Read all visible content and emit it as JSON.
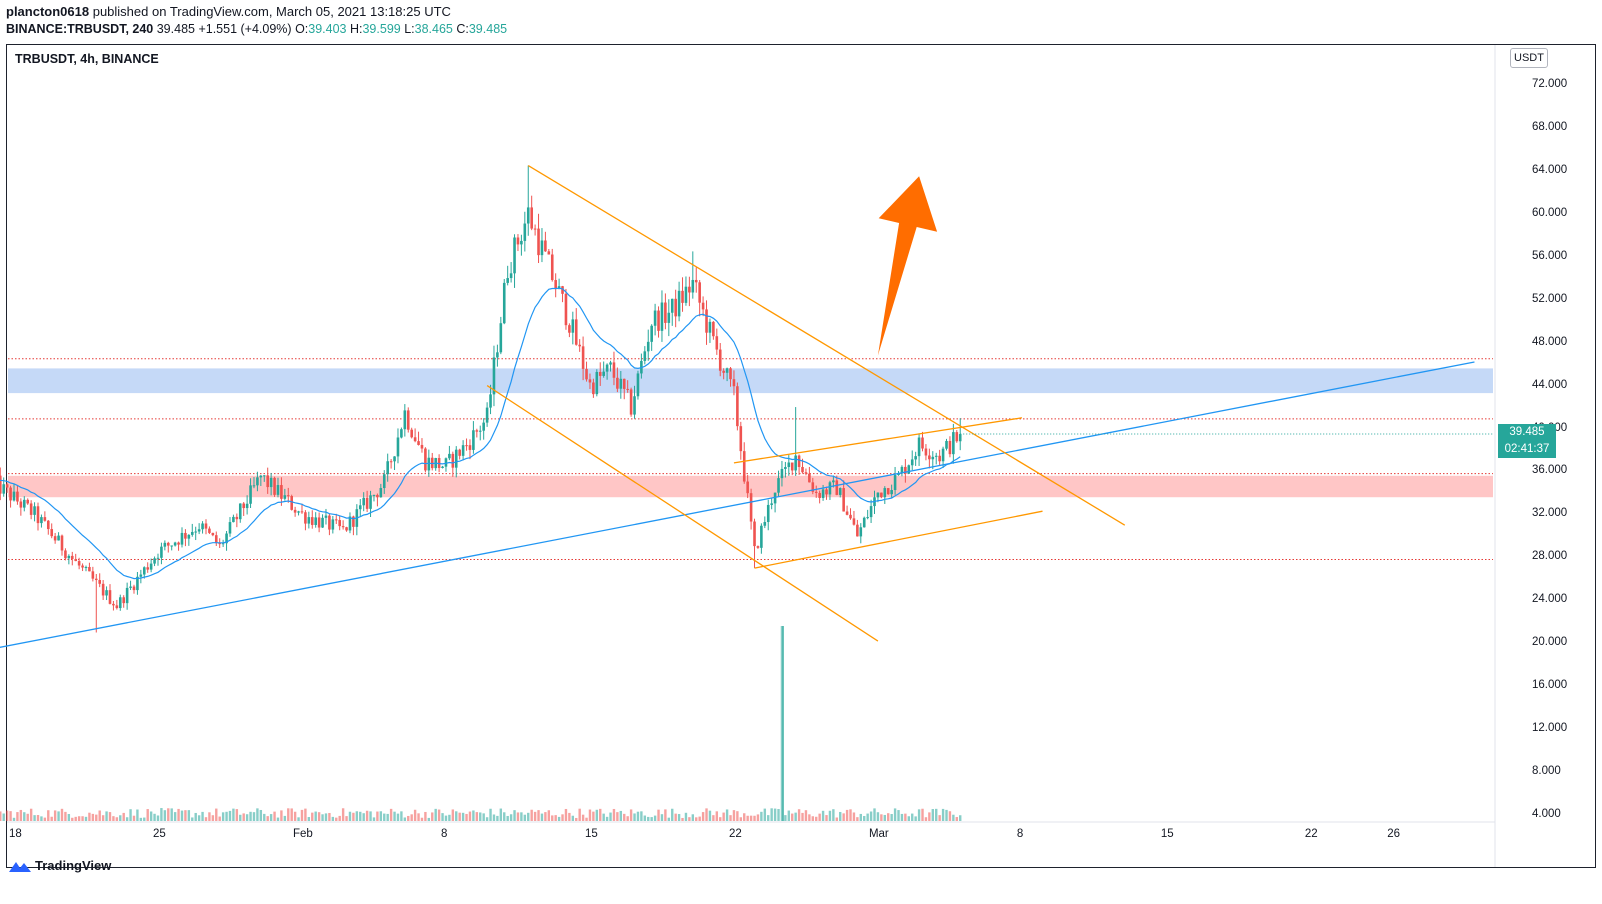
{
  "header": {
    "publisher": "plancton0618",
    "published_text": "published on TradingView.com, March 05, 2021 13:18:25 UTC",
    "symbol_full": "BINANCE:TRBUSDT, 240",
    "last": "39.485",
    "change": "+1.551 (+4.09%)",
    "o_label": "O:",
    "o_value": "39.403",
    "h_label": "H:",
    "h_value": "39.599",
    "l_label": "L:",
    "l_value": "38.465",
    "c_label": "C:",
    "c_value": "39.485"
  },
  "legend": {
    "text": "TRBUSDT, 4h, BINANCE"
  },
  "currency_badge": "USDT",
  "price_tag": {
    "price": "39.485",
    "countdown": "02:41:37"
  },
  "branding": "TradingView",
  "colors": {
    "up": "#26a69a",
    "down": "#ef5350",
    "ema": "#2196f3",
    "trend": "#ff9800",
    "arrow": "#ff6d00",
    "res_zone": "#c5d9f7",
    "sup_zone": "#ffc6c6",
    "dotted": "#e53935"
  },
  "chart_data": {
    "type": "candlestick",
    "title": "TRBUSDT, 4h, BINANCE",
    "x_ticks": [
      "18",
      "25",
      "Feb",
      "8",
      "15",
      "22",
      "Mar",
      "8",
      "15",
      "22",
      "26"
    ],
    "y_ticks": [
      "4.000",
      "8.000",
      "12.000",
      "16.000",
      "20.000",
      "24.000",
      "28.000",
      "32.000",
      "36.000",
      "40.000",
      "44.000",
      "48.000",
      "52.000",
      "56.000",
      "60.000",
      "64.000",
      "68.000",
      "72.000"
    ],
    "ylim": [
      4,
      76
    ],
    "price_path_anchors": [
      {
        "date": "2021-01-17",
        "close": 35.0
      },
      {
        "date": "2021-01-19",
        "close": 32.0
      },
      {
        "date": "2021-01-21",
        "close": 27.5
      },
      {
        "date": "2021-01-23",
        "close": 23.5
      },
      {
        "date": "2021-01-25",
        "close": 28.5
      },
      {
        "date": "2021-01-27",
        "close": 31.0
      },
      {
        "date": "2021-01-28",
        "close": 29.0
      },
      {
        "date": "2021-01-30",
        "close": 35.5
      },
      {
        "date": "2021-02-01",
        "close": 32.0
      },
      {
        "date": "2021-02-03",
        "close": 30.5
      },
      {
        "date": "2021-02-05",
        "close": 35.0
      },
      {
        "date": "2021-02-06",
        "close": 41.5
      },
      {
        "date": "2021-02-07",
        "close": 37.0
      },
      {
        "date": "2021-02-08",
        "close": 36.5
      },
      {
        "date": "2021-02-09",
        "close": 38.5
      },
      {
        "date": "2021-02-10",
        "close": 41.0
      },
      {
        "date": "2021-02-11",
        "close": 55.0
      },
      {
        "date": "2021-02-12",
        "close": 60.0
      },
      {
        "date": "2021-02-13",
        "close": 55.0
      },
      {
        "date": "2021-02-14",
        "close": 50.0
      },
      {
        "date": "2021-02-15",
        "close": 44.0
      },
      {
        "date": "2021-02-16",
        "close": 45.5
      },
      {
        "date": "2021-02-17",
        "close": 42.0
      },
      {
        "date": "2021-02-18",
        "close": 50.0
      },
      {
        "date": "2021-02-19",
        "close": 51.0
      },
      {
        "date": "2021-02-20",
        "close": 53.5
      },
      {
        "date": "2021-02-21",
        "close": 48.0
      },
      {
        "date": "2021-02-22",
        "close": 43.0
      },
      {
        "date": "2021-02-23",
        "close": 28.5
      },
      {
        "date": "2021-02-24",
        "close": 34.5
      },
      {
        "date": "2021-02-25",
        "close": 37.5
      },
      {
        "date": "2021-02-26",
        "close": 34.0
      },
      {
        "date": "2021-02-27",
        "close": 34.5
      },
      {
        "date": "2021-02-28",
        "close": 30.0
      },
      {
        "date": "2021-03-01",
        "close": 34.0
      },
      {
        "date": "2021-03-02",
        "close": 35.5
      },
      {
        "date": "2021-03-03",
        "close": 38.5
      },
      {
        "date": "2021-03-04",
        "close": 37.5
      },
      {
        "date": "2021-03-05",
        "close": 39.485
      }
    ],
    "notable_highs": [
      {
        "date": "2021-02-12",
        "high": 64.5
      },
      {
        "date": "2021-02-20",
        "high": 56.5
      },
      {
        "date": "2021-02-25",
        "high": 42.0
      }
    ],
    "notable_lows": [
      {
        "date": "2021-01-22",
        "low": 21.0
      },
      {
        "date": "2021-02-23",
        "low": 27.0
      }
    ],
    "volume_spike_date": "2021-02-24",
    "overlays": {
      "resistance_zone": [
        43.3,
        45.6
      ],
      "support_zone": [
        33.6,
        35.6
      ],
      "dotted_levels": [
        46.5,
        40.9,
        35.8,
        27.8
      ],
      "blue_trendline": [
        {
          "date": "2021-01-17",
          "price": 19.5
        },
        {
          "date": "2021-03-30",
          "price": 46.2
        }
      ],
      "falling_wedge_upper": [
        {
          "date": "2021-02-12",
          "price": 64.5
        },
        {
          "date": "2021-03-13",
          "price": 31.0
        }
      ],
      "falling_wedge_lower": [
        {
          "date": "2021-02-10",
          "price": 44.0
        },
        {
          "date": "2021-03-01",
          "price": 20.2
        }
      ],
      "rising_channel_upper": [
        {
          "date": "2021-02-22",
          "price": 36.8
        },
        {
          "date": "2021-03-08",
          "price": 41.0
        }
      ],
      "rising_channel_lower": [
        {
          "date": "2021-02-23",
          "price": 27.0
        },
        {
          "date": "2021-03-09",
          "price": 32.3
        }
      ],
      "bullish_arrow": [
        {
          "date": "2021-03-01",
          "price": 46.8
        },
        {
          "date": "2021-03-03",
          "price": 63.5
        }
      ],
      "ema_line": true
    }
  }
}
